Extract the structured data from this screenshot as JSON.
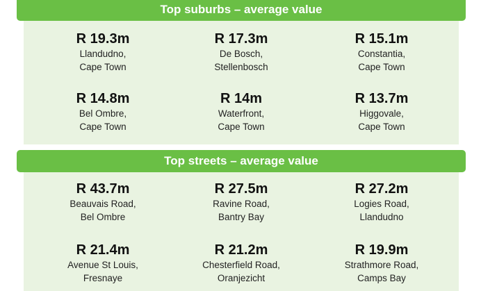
{
  "suburbs": {
    "title": "Top suburbs – average value",
    "items": [
      {
        "value": "R 19.3m",
        "line1": "Llandudno,",
        "line2": "Cape Town"
      },
      {
        "value": "R 17.3m",
        "line1": "De Bosch,",
        "line2": "Stellenbosch"
      },
      {
        "value": "R 15.1m",
        "line1": "Constantia,",
        "line2": "Cape Town"
      },
      {
        "value": "R 14.8m",
        "line1": "Bel Ombre,",
        "line2": "Cape Town"
      },
      {
        "value": "R 14m",
        "line1": "Waterfront,",
        "line2": "Cape Town"
      },
      {
        "value": "R 13.7m",
        "line1": "Higgovale,",
        "line2": "Cape Town"
      }
    ]
  },
  "streets": {
    "title": "Top streets – average value",
    "items": [
      {
        "value": "R 43.7m",
        "line1": "Beauvais Road,",
        "line2": "Bel Ombre"
      },
      {
        "value": "R 27.5m",
        "line1": "Ravine Road,",
        "line2": "Bantry Bay"
      },
      {
        "value": "R 27.2m",
        "line1": "Logies Road,",
        "line2": "Llandudno"
      },
      {
        "value": "R 21.4m",
        "line1": "Avenue St Louis,",
        "line2": "Fresnaye"
      },
      {
        "value": "R 21.2m",
        "line1": "Chesterfield Road,",
        "line2": "Oranjezicht"
      },
      {
        "value": "R 19.9m",
        "line1": "Strathmore Road,",
        "line2": "Camps Bay"
      }
    ]
  },
  "colors": {
    "header_green": "#6abf45",
    "panel_green": "#e9f3e1"
  }
}
